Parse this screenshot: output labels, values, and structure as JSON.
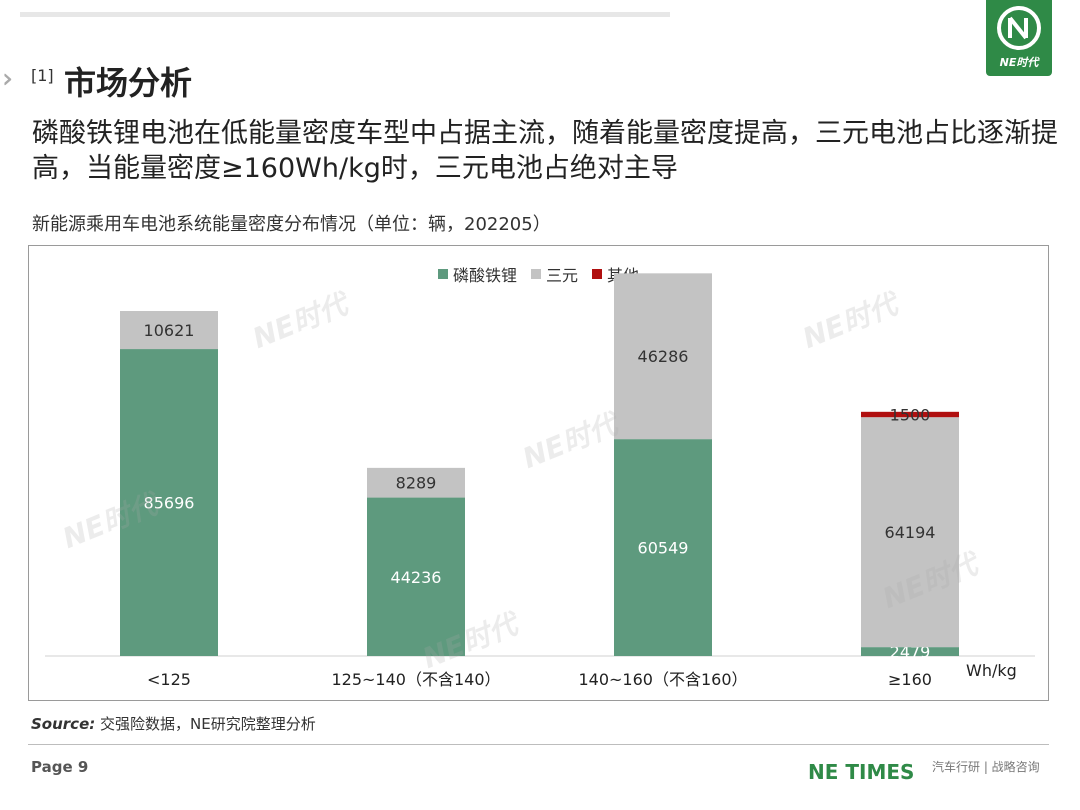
{
  "brand": {
    "logo_text": "NE时代",
    "footer_brand": "NE TIMES",
    "footer_right": "汽车行研 | 战略咨询"
  },
  "section": {
    "number": "[1]",
    "title": "市场分析"
  },
  "headline": "磷酸铁锂电池在低能量密度车型中占据主流，随着能量密度提高，三元电池占比逐渐提高，当能量密度≥160Wh/kg时，三元电池占绝对主导",
  "chart_title": "新能源乘用车电池系统能量密度分布情况（单位：辆，202205）",
  "unit_label": "Wh/kg",
  "source_label": "Source:",
  "source_text": " 交强险数据，NE研究院整理分析",
  "page": "Page 9",
  "colors": {
    "lfp": "#5e9a7e",
    "ncm": "#c3c3c3",
    "other": "#b00f0f",
    "brand_green": "#2f8a47"
  },
  "chart_data": {
    "type": "bar",
    "stacked": true,
    "categories": [
      "<125",
      "125~140（不含140）",
      "140~160（不含160）",
      "≥160"
    ],
    "series": [
      {
        "name": "磷酸铁锂",
        "values": [
          85696,
          44236,
          60549,
          2479
        ]
      },
      {
        "name": "三元",
        "values": [
          10621,
          8289,
          46286,
          64194
        ]
      },
      {
        "name": "其他",
        "values": [
          0,
          0,
          0,
          1500
        ]
      }
    ],
    "data_labels": [
      [
        "85696",
        "44236",
        "60549",
        "2479"
      ],
      [
        "10621",
        "8289",
        "46286",
        "64194"
      ],
      [
        "",
        "",
        "",
        "1500"
      ]
    ],
    "ylim": [
      0,
      110000
    ],
    "legend_position": "top-center",
    "grid": false
  }
}
